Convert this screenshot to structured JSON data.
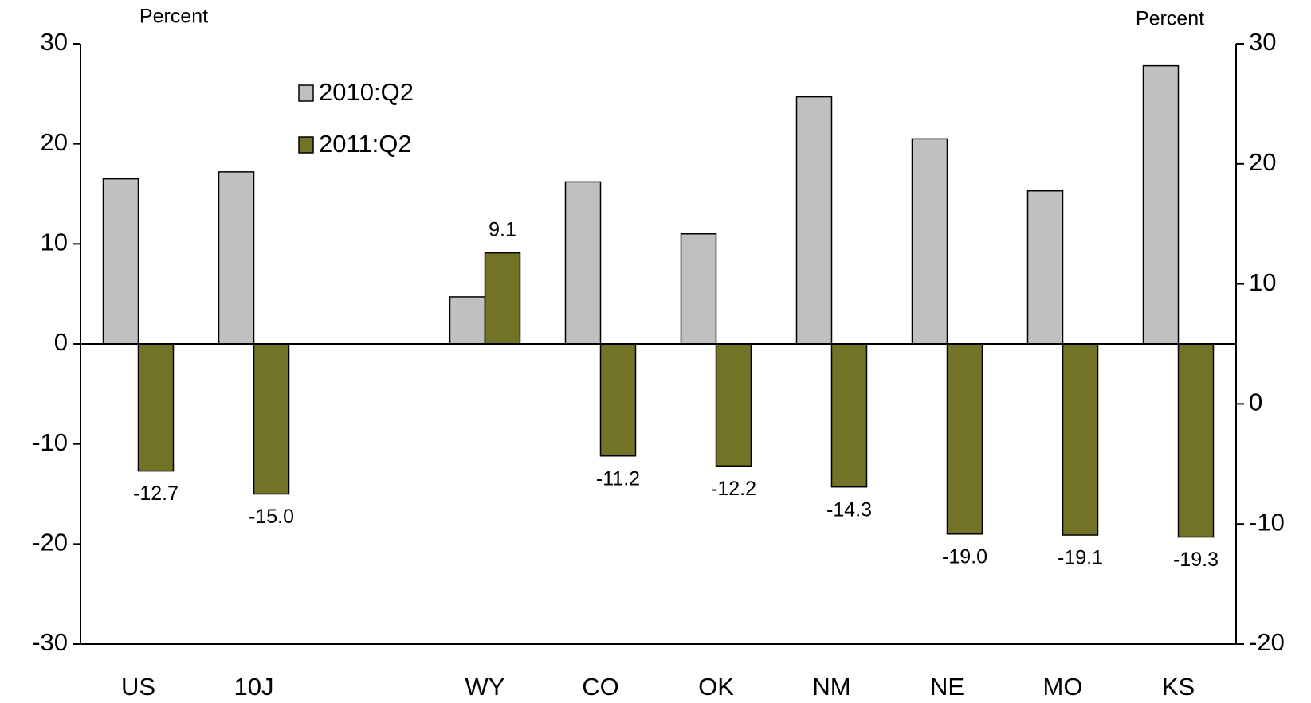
{
  "chart_data": {
    "type": "bar",
    "y_axis_label": "Percent",
    "y2_axis_label": "Percent",
    "categories": [
      "US",
      "10J",
      null,
      "WY",
      "CO",
      "OK",
      "NM",
      "NE",
      "MO",
      "KS"
    ],
    "series": [
      {
        "name": "2010:Q2",
        "color": "#c0c0c0",
        "values": [
          16.5,
          17.2,
          null,
          4.7,
          16.2,
          11.0,
          24.7,
          20.5,
          15.3,
          27.8
        ]
      },
      {
        "name": "2011:Q2",
        "color": "#737328",
        "values": [
          -12.7,
          -15.0,
          null,
          9.1,
          -11.2,
          -12.2,
          -14.3,
          -19.0,
          -19.1,
          -19.3
        ],
        "value_labels": [
          "-12.7",
          "-15.0",
          null,
          "9.1",
          "-11.2",
          "-12.2",
          "-14.3",
          "-19.0",
          "-19.1",
          "-19.3"
        ]
      }
    ],
    "ylim": [
      -30,
      30
    ],
    "yticks": [
      -30,
      -20,
      -10,
      0,
      10,
      20,
      30
    ],
    "y2lim": [
      -20,
      30
    ],
    "y2ticks": [
      -20,
      -10,
      0,
      10,
      20,
      30
    ],
    "legend": "upper left",
    "grid": false
  }
}
